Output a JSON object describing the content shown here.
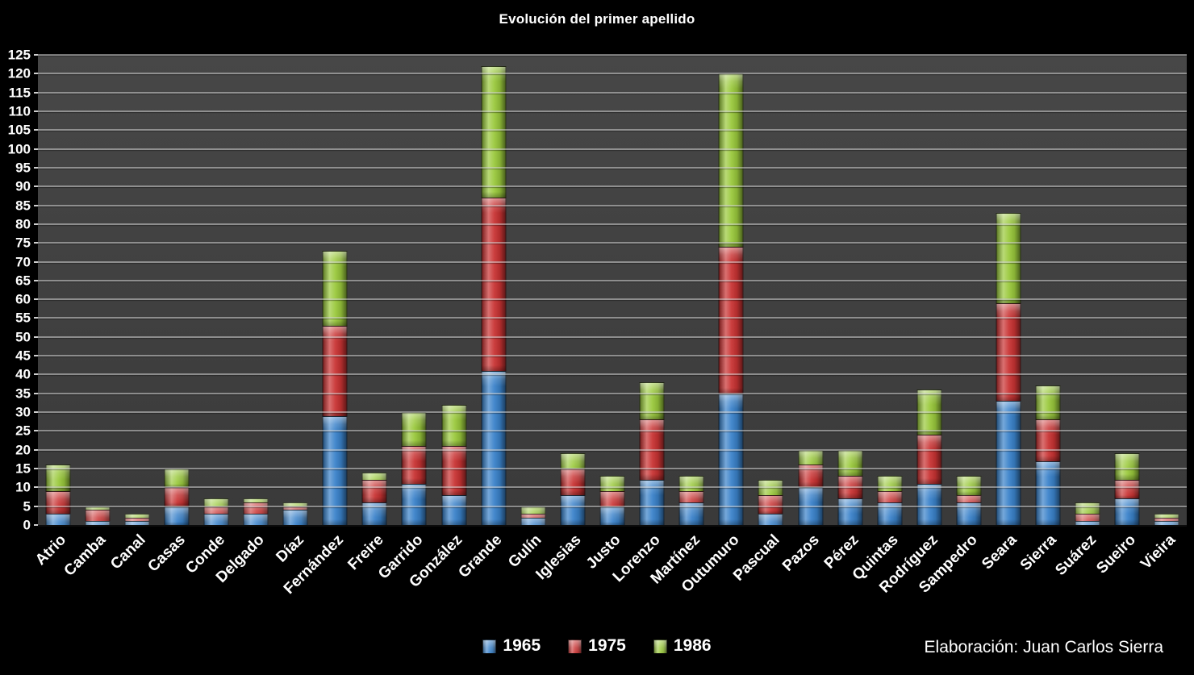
{
  "footer": {
    "credit": "Elaboración: Juan Carlos Sierra"
  },
  "colors": {
    "background": "#000000",
    "plot_background": "#3d3d3d",
    "gridline": "#9e9e9e",
    "text": "#ffffff",
    "series_1965": "#3a82ca",
    "series_1975": "#c93333",
    "series_1986": "#9ac93c"
  },
  "chart_data": {
    "type": "bar",
    "stacked": true,
    "title": "Evolución del primer apellido",
    "xlabel": "",
    "ylabel": "",
    "ylim": [
      0,
      125
    ],
    "ytick_step": 5,
    "yticks": [
      "0",
      "5",
      "10",
      "15",
      "20",
      "25",
      "30",
      "35",
      "40",
      "45",
      "50",
      "55",
      "60",
      "65",
      "70",
      "75",
      "80",
      "85",
      "90",
      "95",
      "100",
      "105",
      "110",
      "115",
      "120",
      "125"
    ],
    "grid": true,
    "legend_position": "bottom",
    "categories": [
      "Atrio",
      "Camba",
      "Canal",
      "Casas",
      "Conde",
      "Delgado",
      "Díaz",
      "Fernández",
      "Freire",
      "Garrido",
      "González",
      "Grande",
      "Gulín",
      "Iglesias",
      "Justo",
      "Lorenzo",
      "Martínez",
      "Outumuro",
      "Pascual",
      "Pazos",
      "Pérez",
      "Quintas",
      "Rodríguez",
      "Sampedro",
      "Seara",
      "Sierra",
      "Suárez",
      "Sueiro",
      "Vieira"
    ],
    "series": [
      {
        "name": "1965",
        "color": "#3a82ca",
        "values": [
          3,
          1,
          1,
          5,
          3,
          3,
          4,
          29,
          6,
          11,
          8,
          41,
          2,
          8,
          5,
          12,
          6,
          35,
          3,
          10,
          7,
          6,
          11,
          6,
          33,
          17,
          1,
          7,
          1
        ]
      },
      {
        "name": "1975",
        "color": "#c93333",
        "values": [
          6,
          3,
          1,
          5,
          2,
          3,
          1,
          24,
          6,
          10,
          13,
          46,
          1,
          7,
          4,
          16,
          3,
          39,
          5,
          6,
          6,
          3,
          13,
          2,
          26,
          11,
          2,
          5,
          1
        ]
      },
      {
        "name": "1986",
        "color": "#9ac93c",
        "values": [
          7,
          1,
          1,
          5,
          2,
          1,
          1,
          20,
          2,
          9,
          11,
          35,
          2,
          4,
          4,
          10,
          4,
          46,
          4,
          4,
          7,
          4,
          12,
          5,
          24,
          9,
          3,
          7,
          1
        ]
      }
    ]
  }
}
